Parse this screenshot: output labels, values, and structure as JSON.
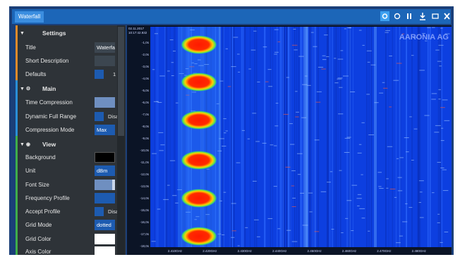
{
  "tab": {
    "title": "Waterfall"
  },
  "panel": {
    "sections": [
      {
        "title": "Settings",
        "rows": [
          {
            "label": "Title",
            "value": "Waterfa"
          },
          {
            "label": "Short Description"
          },
          {
            "label": "Defaults",
            "value": "1"
          }
        ]
      },
      {
        "title": "Main",
        "rows": [
          {
            "label": "Time Compression"
          },
          {
            "label": "Dynamic Full Range",
            "value": "Disa"
          },
          {
            "label": "Compression Mode",
            "value": "Max"
          }
        ]
      },
      {
        "title": "View",
        "rows": [
          {
            "label": "Background"
          },
          {
            "label": "Unit",
            "value": "dBm"
          },
          {
            "label": "Font Size"
          },
          {
            "label": "Frequency Profile"
          },
          {
            "label": "Accept Profile",
            "value": "Disa"
          },
          {
            "label": "Grid Mode",
            "value": "dotted"
          },
          {
            "label": "Grid Color"
          },
          {
            "label": "Axis Color"
          }
        ]
      }
    ]
  },
  "waterfall": {
    "timestamp": [
      "02.11.2017",
      "10:17:42.932"
    ],
    "logo": "AARONIA AG",
    "y_labels": [
      "-1,0s",
      "-2,0s",
      "-3,0s",
      "-4,0s",
      "-5,0s",
      "-6,0s",
      "-7,0s",
      "-8,0s",
      "-9,0s",
      "-10,0s",
      "-11,0s",
      "-12,0s",
      "-13,0s",
      "-14,0s",
      "-15,0s",
      "-16,0s",
      "-17,0s",
      "-18,0s"
    ],
    "x_labels": [
      "2.410GHz",
      "2.420GHz",
      "2.430GHz",
      "2.440GHz",
      "2.450GHz",
      "2.460GHz",
      "2.470GHz",
      "2.480GHz"
    ]
  }
}
